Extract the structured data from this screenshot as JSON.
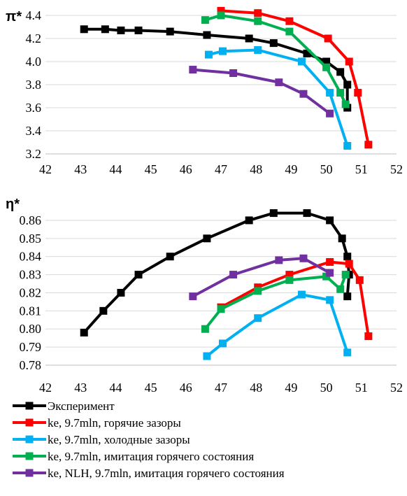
{
  "chart_data": [
    {
      "type": "line",
      "ylabel": "π*",
      "xlabel": "",
      "xlim": [
        42,
        52
      ],
      "ylim": [
        3.2,
        4.4
      ],
      "xticks": [
        "42",
        "43",
        "44",
        "45",
        "46",
        "47",
        "48",
        "49",
        "50",
        "51",
        "52"
      ],
      "yticks": [
        "3.2",
        "3.4",
        "3.6",
        "3.8",
        "4.0",
        "4.2",
        "4.4"
      ],
      "grid": "horizontal",
      "series": [
        {
          "name": "Эксперимент",
          "color": "#000000",
          "x": [
            43.1,
            43.7,
            44.15,
            44.65,
            45.55,
            46.6,
            47.8,
            48.5,
            49.45,
            50.0,
            50.4,
            50.6,
            50.6
          ],
          "y": [
            4.28,
            4.28,
            4.27,
            4.27,
            4.26,
            4.23,
            4.2,
            4.16,
            4.07,
            4.0,
            3.91,
            3.8,
            3.6
          ]
        },
        {
          "name": "ke, 9.7mln, горячие зазоры",
          "color": "#ff0000",
          "x": [
            47.0,
            48.05,
            48.95,
            50.05,
            50.65,
            50.9,
            51.2
          ],
          "y": [
            4.44,
            4.42,
            4.35,
            4.2,
            4.0,
            3.73,
            3.28
          ]
        },
        {
          "name": "ke, 9.7mln, холодные зазоры",
          "color": "#00b0f0",
          "x": [
            46.65,
            47.05,
            48.05,
            49.3,
            50.1,
            50.6
          ],
          "y": [
            4.06,
            4.09,
            4.1,
            4.0,
            3.73,
            3.27
          ]
        },
        {
          "name": "ke, 9.7mln, имитация горячего состояния",
          "color": "#00b050",
          "x": [
            46.55,
            47.0,
            48.05,
            48.95,
            50.0,
            50.4,
            50.55
          ],
          "y": [
            4.36,
            4.4,
            4.35,
            4.26,
            3.95,
            3.73,
            3.63
          ]
        },
        {
          "name": "ke, NLH, 9.7mln, имитация горячего состояния",
          "color": "#7030a0",
          "x": [
            46.2,
            47.35,
            48.65,
            49.35,
            50.1
          ],
          "y": [
            3.93,
            3.9,
            3.82,
            3.72,
            3.55
          ]
        }
      ]
    },
    {
      "type": "line",
      "ylabel": "η*",
      "xlabel": "",
      "xlim": [
        42,
        52
      ],
      "ylim": [
        0.78,
        0.865
      ],
      "xticks": [
        "42",
        "43",
        "44",
        "45",
        "46",
        "47",
        "48",
        "49",
        "50",
        "51",
        "52"
      ],
      "yticks": [
        "0.78",
        "0.79",
        "0.80",
        "0.81",
        "0.82",
        "0.83",
        "0.84",
        "0.85",
        "0.86"
      ],
      "grid": "horizontal",
      "series": [
        {
          "name": "Эксперимент",
          "color": "#000000",
          "x": [
            43.1,
            43.65,
            44.15,
            44.65,
            45.55,
            46.6,
            47.8,
            48.5,
            49.45,
            50.1,
            50.45,
            50.6,
            50.65,
            50.6
          ],
          "y": [
            0.798,
            0.81,
            0.82,
            0.83,
            0.84,
            0.85,
            0.86,
            0.864,
            0.864,
            0.86,
            0.85,
            0.84,
            0.83,
            0.818
          ]
        },
        {
          "name": "ke, 9.7mln, горячие зазоры",
          "color": "#ff0000",
          "x": [
            47.0,
            48.05,
            48.95,
            50.1,
            50.65,
            50.95,
            51.2
          ],
          "y": [
            0.812,
            0.823,
            0.83,
            0.837,
            0.836,
            0.827,
            0.796
          ]
        },
        {
          "name": "ke, 9.7mln, холодные зазоры",
          "color": "#00b0f0",
          "x": [
            46.6,
            47.05,
            48.05,
            49.3,
            50.1,
            50.6
          ],
          "y": [
            0.785,
            0.792,
            0.806,
            0.819,
            0.816,
            0.787
          ]
        },
        {
          "name": "ke, 9.7mln, имитация горячего состояния",
          "color": "#00b050",
          "x": [
            46.55,
            47.0,
            48.05,
            48.95,
            50.0,
            50.4,
            50.55
          ],
          "y": [
            0.8,
            0.811,
            0.821,
            0.827,
            0.829,
            0.822,
            0.83
          ]
        },
        {
          "name": "ke, NLH, 9.7mln, имитация горячего состояния",
          "color": "#7030a0",
          "x": [
            46.2,
            47.35,
            48.65,
            49.35,
            50.1
          ],
          "y": [
            0.818,
            0.83,
            0.838,
            0.839,
            0.831
          ]
        }
      ]
    }
  ],
  "legend": {
    "placement": "bottom-left",
    "entries": [
      {
        "label": "Эксперимент",
        "color": "#000000"
      },
      {
        "label": "ke, 9.7mln, горячие зазоры",
        "color": "#ff0000"
      },
      {
        "label": "ke, 9.7mln, холодные зазоры",
        "color": "#00b0f0"
      },
      {
        "label": "ke, 9.7mln, имитация горячего состояния",
        "color": "#00b050"
      },
      {
        "label": "ke, NLH, 9.7mln, имитация горячего состояния",
        "color": "#7030a0"
      }
    ]
  }
}
